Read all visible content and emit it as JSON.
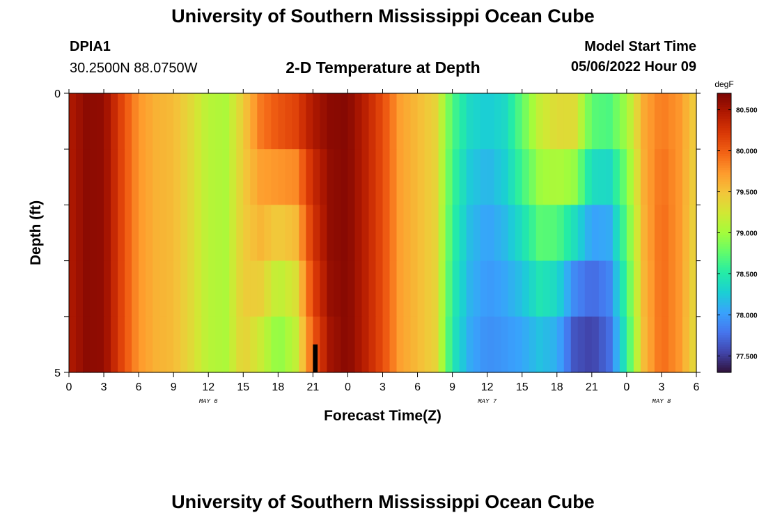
{
  "page": {
    "title_top": "University of Southern Mississippi Ocean Cube",
    "title_bottom": "University of Southern Mississippi Ocean Cube"
  },
  "header": {
    "station": "DPIA1",
    "coords": "30.2500N  88.0750W",
    "subtitle": "2-D Temperature at Depth",
    "model_start_label": "Model Start Time",
    "model_start_value": "05/06/2022 Hour 09"
  },
  "chart_data": {
    "type": "heatmap",
    "title": "2-D Temperature at Depth",
    "xlabel": "Forecast Time(Z)",
    "ylabel": "Depth (ft)",
    "x_range_hours_since_may6_00z": [
      0,
      54
    ],
    "x_tick_labels": [
      "0",
      "3",
      "6",
      "9",
      "12",
      "15",
      "18",
      "21",
      "0",
      "3",
      "6",
      "9",
      "12",
      "15",
      "18",
      "21",
      "0",
      "3",
      "6"
    ],
    "day_labels": [
      {
        "label": "MAY 6",
        "hour": 12
      },
      {
        "label": "MAY 7",
        "hour": 36
      },
      {
        "label": "MAY 8",
        "hour": 51
      }
    ],
    "y_range": [
      0,
      5
    ],
    "y_tick_labels": [
      {
        "value": 0,
        "label": "0"
      },
      {
        "value": 1,
        "label": ""
      },
      {
        "value": 2,
        "label": ""
      },
      {
        "value": 3,
        "label": ""
      },
      {
        "value": 4,
        "label": ""
      },
      {
        "value": 5,
        "label": "5"
      }
    ],
    "colorbar": {
      "unit": "degF",
      "min": 77.3,
      "max": 80.7,
      "ticks": [
        "77.500",
        "78.000",
        "78.500",
        "79.000",
        "79.500",
        "80.000",
        "80.500"
      ],
      "colors": [
        "#30123b",
        "#4145ab",
        "#4675ed",
        "#39a2fc",
        "#1bcfd4",
        "#24eca6",
        "#61fc6c",
        "#a4fc3b",
        "#d1e834",
        "#f3c63a",
        "#fe9b2d",
        "#f36315",
        "#d93806",
        "#b11901",
        "#7a0403"
      ]
    },
    "depth_layers": [
      0.5,
      1.5,
      2.5,
      3.5,
      4.5
    ],
    "time_nodes_hours": [
      0,
      1.5,
      3,
      4.5,
      6,
      7.5,
      9,
      10.5,
      12,
      13.5,
      15,
      16.5,
      18,
      19.5,
      21,
      22.5,
      24,
      25.5,
      27,
      28.5,
      30,
      31.5,
      33,
      34.5,
      36,
      37.5,
      39,
      40.5,
      42,
      43.5,
      45,
      46.5,
      48,
      49.5,
      51,
      52.5,
      54
    ],
    "temperature_degF": [
      [
        80.45,
        80.62,
        80.6,
        80.15,
        79.75,
        79.6,
        79.55,
        79.35,
        79.1,
        79.05,
        79.45,
        79.95,
        80.25,
        80.4,
        80.58,
        80.65,
        80.65,
        80.4,
        80.1,
        79.7,
        79.55,
        79.4,
        78.7,
        78.4,
        78.3,
        78.35,
        78.75,
        79.25,
        79.5,
        79.45,
        78.9,
        78.85,
        79.1,
        79.65,
        79.85,
        79.75,
        79.4
      ],
      [
        80.45,
        80.62,
        80.6,
        80.15,
        79.75,
        79.6,
        79.55,
        79.35,
        79.1,
        79.05,
        79.45,
        79.8,
        79.85,
        79.9,
        80.35,
        80.6,
        80.65,
        80.4,
        80.1,
        79.7,
        79.55,
        79.4,
        78.65,
        78.3,
        78.2,
        78.35,
        78.75,
        79.1,
        79.2,
        79.2,
        78.55,
        78.5,
        78.9,
        79.65,
        79.9,
        79.75,
        79.4
      ],
      [
        80.45,
        80.62,
        80.6,
        80.15,
        79.75,
        79.6,
        79.55,
        79.35,
        79.1,
        79.05,
        79.45,
        79.6,
        79.65,
        79.7,
        80.3,
        80.6,
        80.65,
        80.4,
        80.1,
        79.7,
        79.55,
        79.4,
        78.6,
        78.2,
        78.05,
        78.2,
        78.5,
        78.85,
        78.9,
        78.7,
        78.2,
        78.2,
        78.8,
        79.6,
        79.95,
        79.75,
        79.35
      ],
      [
        80.45,
        80.62,
        80.6,
        80.15,
        79.75,
        79.6,
        79.55,
        79.35,
        79.1,
        79.05,
        79.45,
        79.55,
        79.25,
        79.4,
        80.2,
        80.6,
        80.65,
        80.4,
        80.1,
        79.7,
        79.55,
        79.4,
        78.55,
        78.15,
        78.0,
        78.1,
        78.3,
        78.6,
        78.5,
        78.1,
        77.85,
        77.95,
        78.7,
        79.6,
        79.95,
        79.75,
        79.35
      ],
      [
        80.45,
        80.62,
        80.6,
        80.15,
        79.75,
        79.6,
        79.55,
        79.35,
        79.1,
        79.05,
        79.45,
        79.3,
        79.0,
        79.2,
        80.1,
        80.55,
        80.65,
        80.4,
        80.1,
        79.7,
        79.55,
        79.4,
        78.5,
        78.1,
        77.95,
        78.0,
        78.1,
        78.3,
        78.2,
        77.7,
        77.6,
        77.8,
        78.6,
        79.55,
        79.95,
        79.75,
        79.3
      ],
      [
        80.45,
        80.62,
        80.6,
        80.15,
        79.75,
        79.6,
        79.55,
        79.35,
        79.1,
        79.05,
        79.4,
        79.1,
        78.8,
        79.1,
        79.95,
        80.5,
        80.65,
        80.4,
        80.1,
        79.7,
        79.55,
        79.4,
        78.45,
        78.05,
        77.9,
        77.95,
        78.0,
        78.1,
        78.0,
        77.55,
        77.45,
        77.7,
        78.5,
        79.55,
        79.95,
        79.75,
        79.3
      ]
    ],
    "no_data_marker": {
      "hour": 21.0,
      "hour_end": 21.4,
      "depth_top": 4.5,
      "depth_bottom": 5
    }
  }
}
